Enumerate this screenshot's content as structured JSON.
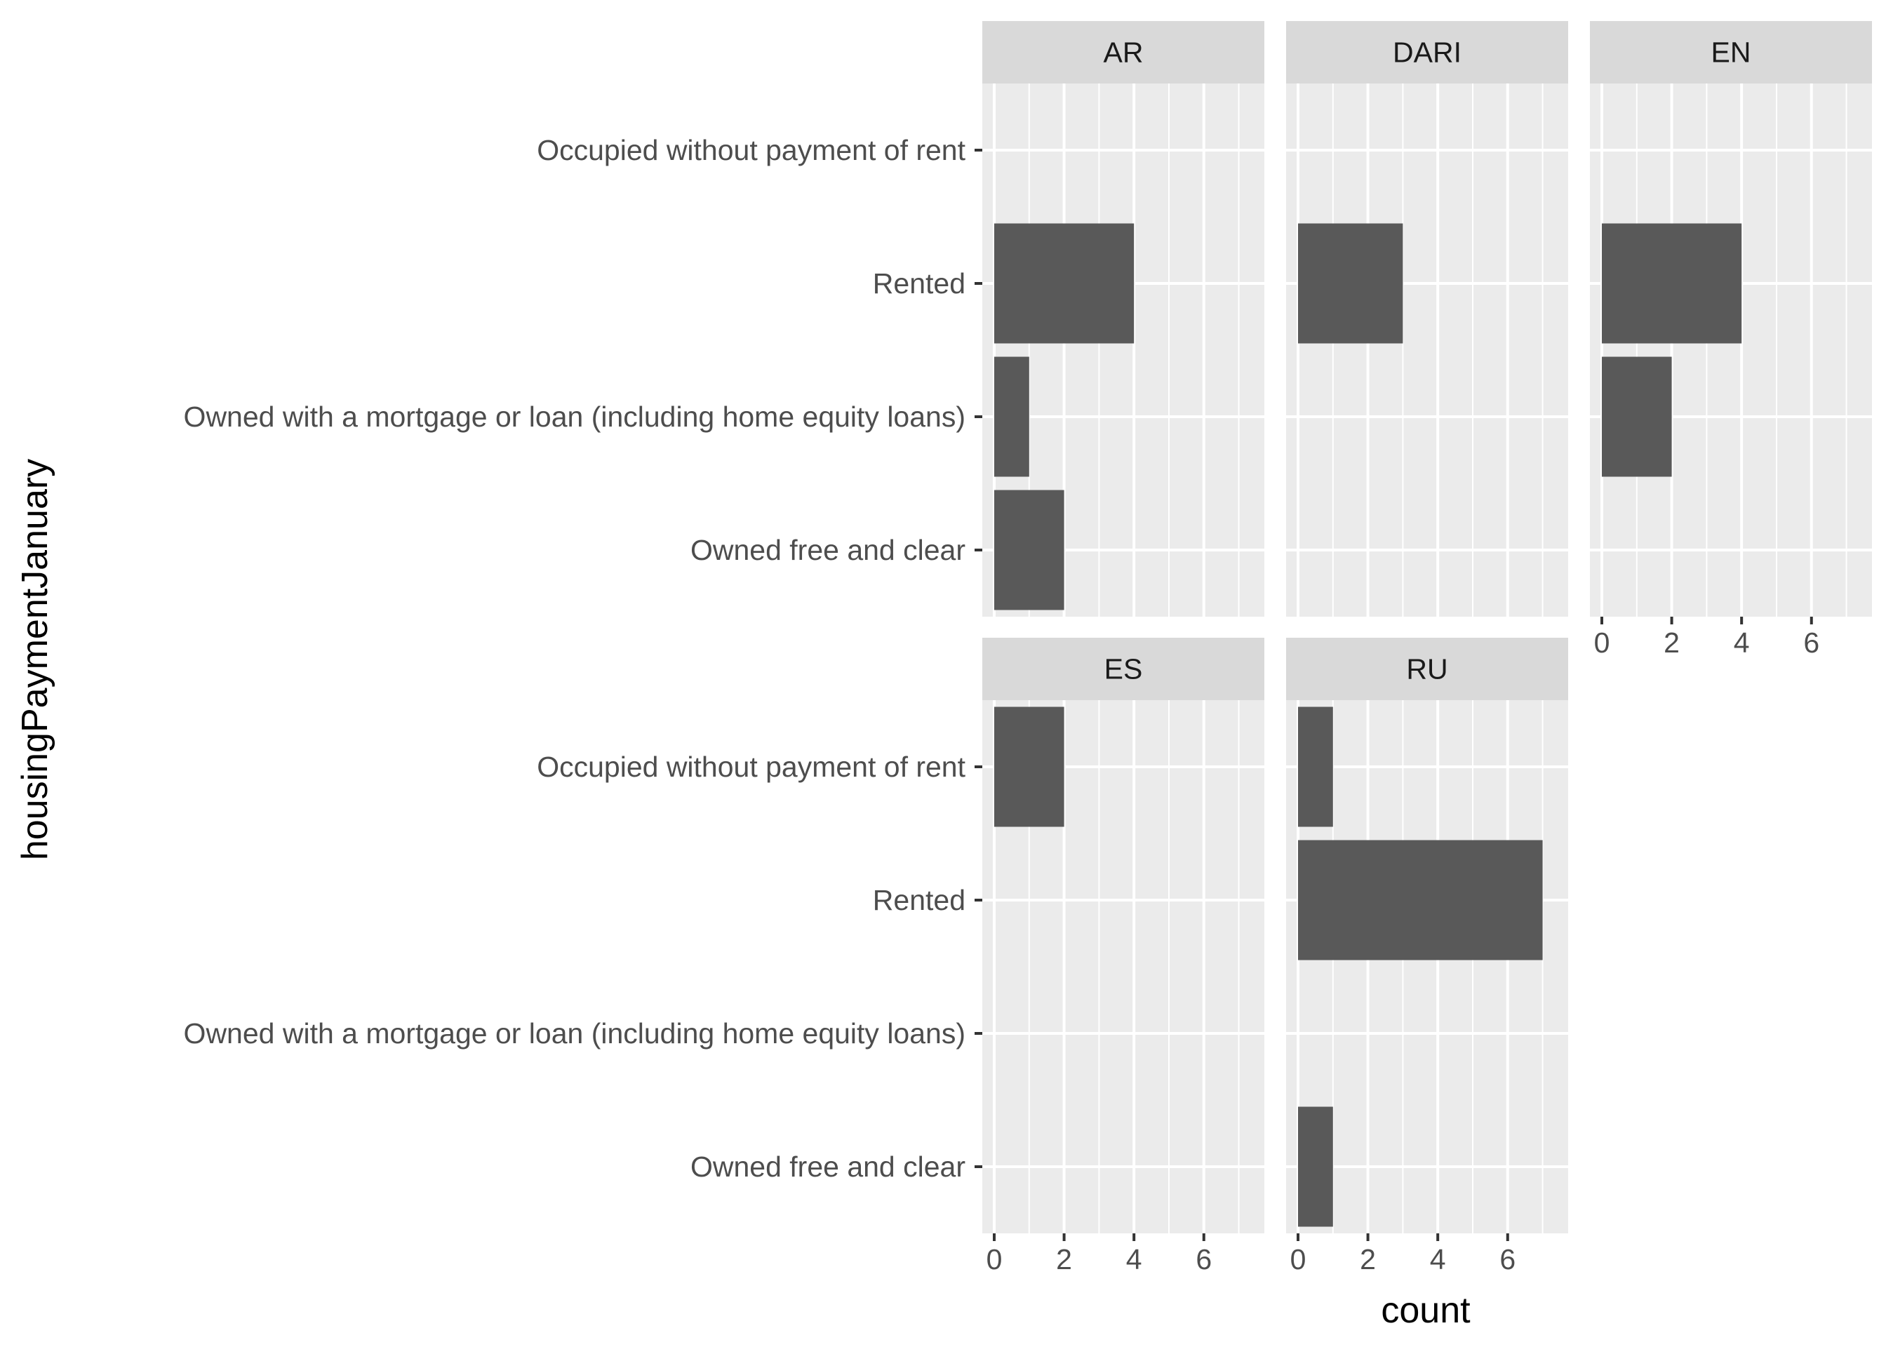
{
  "chart_data": {
    "type": "bar",
    "orientation": "horizontal",
    "facet_layout": "wrap, 3 columns",
    "xlabel": "count",
    "ylabel": "housingPaymentJanuary",
    "xlim": [
      0,
      7.35
    ],
    "x_ticks": [
      0,
      2,
      4,
      6
    ],
    "categories": [
      "Occupied without payment of rent",
      "Rented",
      "Owned with a mortgage or loan (including home equity loans)",
      "Owned free and clear"
    ],
    "facets": [
      {
        "label": "AR",
        "values": [
          0,
          4,
          1,
          2
        ]
      },
      {
        "label": "DARI",
        "values": [
          0,
          3,
          0,
          0
        ]
      },
      {
        "label": "EN",
        "values": [
          0,
          4,
          2,
          0
        ]
      },
      {
        "label": "ES",
        "values": [
          2,
          0,
          0,
          0
        ]
      },
      {
        "label": "RU",
        "values": [
          1,
          7,
          0,
          1
        ]
      }
    ],
    "grid": true,
    "legend": "none"
  }
}
